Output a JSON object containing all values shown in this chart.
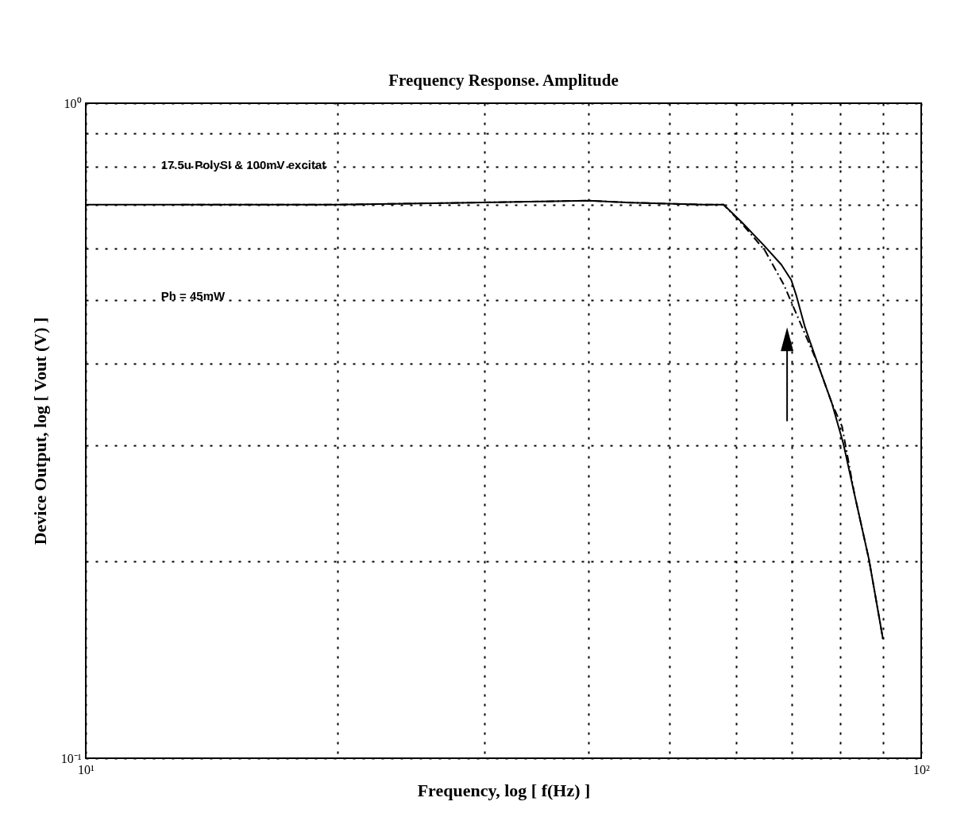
{
  "chart_data": {
    "type": "line",
    "title": "Frequency Response. Amplitude",
    "xlabel": "Frequency,  log [ f(Hz) ]",
    "ylabel": "Device Output,  log [ Vout (V) ]",
    "annotations": [
      "17.5u PolySI & 100mV excitat",
      "Ph = 45mW"
    ],
    "log": "xy",
    "grid": true,
    "xlim": [
      10,
      100
    ],
    "ylim": [
      0.1,
      1
    ],
    "xticks": [
      {
        "value": 10,
        "label": "10¹"
      },
      {
        "value": 20,
        "label": null
      },
      {
        "value": 30,
        "label": null
      },
      {
        "value": 40,
        "label": null
      },
      {
        "value": 50,
        "label": null
      },
      {
        "value": 60,
        "label": null
      },
      {
        "value": 70,
        "label": null
      },
      {
        "value": 80,
        "label": null
      },
      {
        "value": 90,
        "label": null
      },
      {
        "value": 100,
        "label": "10²"
      }
    ],
    "yticks": [
      {
        "value": 0.1,
        "label": "10⁻¹"
      },
      {
        "value": 0.2,
        "label": null
      },
      {
        "value": 0.3,
        "label": null
      },
      {
        "value": 0.4,
        "label": null
      },
      {
        "value": 0.5,
        "label": null
      },
      {
        "value": 0.6,
        "label": null
      },
      {
        "value": 0.7,
        "label": null
      },
      {
        "value": 0.8,
        "label": null
      },
      {
        "value": 0.9,
        "label": null
      },
      {
        "value": 1,
        "label": "10⁰"
      }
    ],
    "series": [
      {
        "color": "#000000",
        "line_style": "solid",
        "x": [
          10,
          20,
          29,
          40,
          45,
          55,
          58,
          61,
          64.8,
          68,
          69.9,
          70.9,
          72.6,
          75.2,
          78.2,
          80.7,
          83.2,
          86.6,
          90
        ],
        "values": [
          0.7,
          0.7,
          0.705,
          0.71,
          0.705,
          0.7,
          0.7,
          0.658,
          0.607,
          0.567,
          0.537,
          0.508,
          0.455,
          0.4,
          0.348,
          0.302,
          0.253,
          0.201,
          0.152
        ]
      },
      {
        "color": "#000000",
        "line_style": "dashed",
        "x": [
          13,
          20,
          29,
          40,
          45,
          55,
          58,
          61,
          65,
          68.5,
          70.1,
          72.3,
          75.2,
          78.2,
          80.4,
          83.2,
          86.6,
          90
        ],
        "values": [
          0.7,
          0.7,
          0.705,
          0.71,
          0.705,
          0.7,
          0.7,
          0.655,
          0.596,
          0.528,
          0.493,
          0.45,
          0.4,
          0.348,
          0.321,
          0.253,
          0.201,
          0.152
        ]
      }
    ]
  }
}
